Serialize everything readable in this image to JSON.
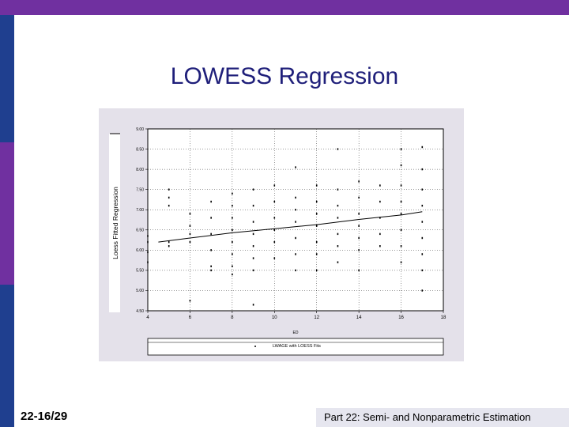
{
  "slide": {
    "title": "LOWESS Regression",
    "slide_number": "22-16/29",
    "footer": "Part 22: Semi- and Nonparametric Estimation"
  },
  "colors": {
    "top_bar": "#7030a0",
    "side_strip": [
      "#1f3f8f",
      "#7030a0",
      "#1f3f8f"
    ],
    "title": "#1f1f7a",
    "plot_background": "#e4e1ea"
  },
  "chart_data": {
    "type": "scatter",
    "title": "",
    "xlabel": "ED",
    "ylabel": "Loess Fitted Regression",
    "xlim": [
      4,
      18
    ],
    "ylim": [
      4.5,
      9.0
    ],
    "x_ticks": [
      "4",
      "6",
      "8",
      "10",
      "12",
      "14",
      "16",
      "18"
    ],
    "y_ticks": [
      "4.50",
      "5.00",
      "5.50",
      "6.00",
      "6.50",
      "7.00",
      "7.50",
      "8.00",
      "8.50",
      "9.00"
    ],
    "grid": true,
    "legend": "LWAGE with LOESS Fits",
    "points_by_x": [
      {
        "x": 4,
        "y": [
          5.95,
          6.2,
          6.35,
          5.7
        ]
      },
      {
        "x": 5,
        "y": [
          7.5,
          7.3,
          7.1,
          6.2,
          6.1
        ]
      },
      {
        "x": 6,
        "y": [
          6.9,
          6.6,
          6.4,
          6.2,
          4.75
        ]
      },
      {
        "x": 7,
        "y": [
          7.2,
          6.8,
          6.4,
          6.0,
          5.6,
          5.5
        ]
      },
      {
        "x": 8,
        "y": [
          7.4,
          7.1,
          6.8,
          6.5,
          6.2,
          5.9,
          5.6,
          5.4
        ]
      },
      {
        "x": 9,
        "y": [
          7.5,
          7.1,
          6.7,
          6.4,
          6.1,
          5.8,
          5.5,
          4.65
        ]
      },
      {
        "x": 10,
        "y": [
          7.6,
          7.2,
          6.8,
          6.5,
          6.2,
          5.8
        ]
      },
      {
        "x": 11,
        "y": [
          8.05,
          7.3,
          7.0,
          6.7,
          6.3,
          5.9,
          5.5
        ]
      },
      {
        "x": 12,
        "y": [
          7.6,
          7.2,
          6.9,
          6.6,
          6.2,
          5.9,
          5.5
        ]
      },
      {
        "x": 13,
        "y": [
          8.5,
          7.5,
          7.1,
          6.8,
          6.4,
          6.1,
          5.7
        ]
      },
      {
        "x": 14,
        "y": [
          7.7,
          7.3,
          6.9,
          6.6,
          6.3,
          6.0,
          5.5
        ]
      },
      {
        "x": 15,
        "y": [
          7.6,
          7.2,
          6.8,
          6.4,
          6.1
        ]
      },
      {
        "x": 16,
        "y": [
          8.5,
          8.1,
          7.6,
          7.2,
          6.9,
          6.5,
          6.1,
          5.7
        ]
      },
      {
        "x": 17,
        "y": [
          8.55,
          8.0,
          7.5,
          7.1,
          6.7,
          6.3,
          5.9,
          5.5,
          5.0
        ]
      }
    ],
    "fitted_line": {
      "x": [
        4.5,
        6,
        8,
        10,
        12,
        14,
        16,
        17
      ],
      "y": [
        6.2,
        6.3,
        6.43,
        6.53,
        6.63,
        6.76,
        6.87,
        6.95
      ]
    }
  }
}
